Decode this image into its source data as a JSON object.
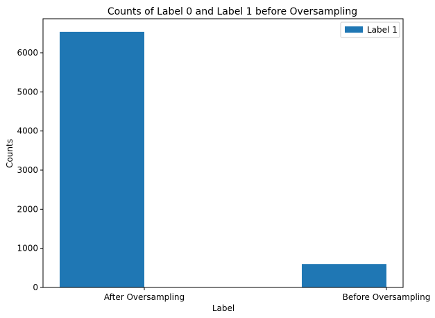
{
  "chart_data": {
    "type": "bar",
    "title": "Counts of Label 0 and Label 1 before Oversampling",
    "xlabel": "Label",
    "ylabel": "Counts",
    "categories": [
      "After Oversampling",
      "Before Oversampling"
    ],
    "series": [
      {
        "name": "Label 1",
        "values": [
          6535,
          600
        ],
        "color": "#1f77b4"
      }
    ],
    "ylim": [
      0,
      6870
    ],
    "yticks": [
      0,
      1000,
      2000,
      3000,
      4000,
      5000,
      6000
    ],
    "grid": false,
    "legend_position": "top-right"
  }
}
